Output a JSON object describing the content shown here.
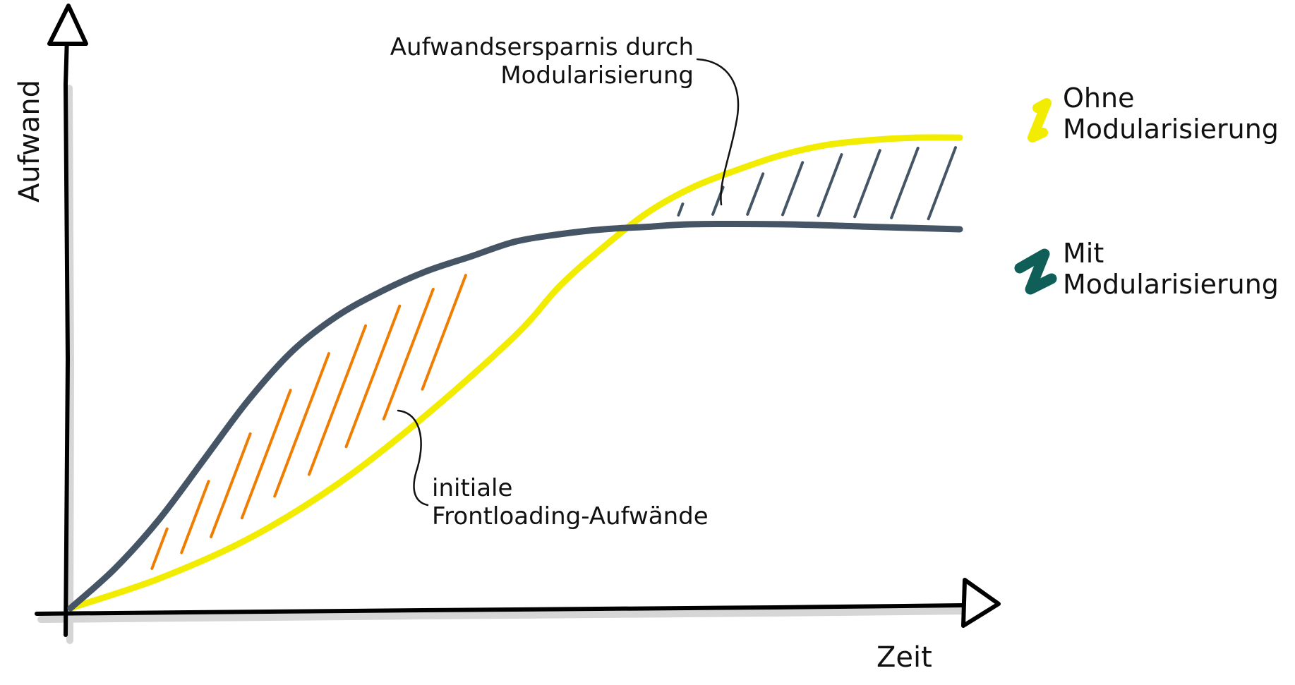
{
  "chart_data": {
    "type": "line",
    "title": "",
    "xlabel": "Zeit",
    "ylabel": "Aufwand",
    "grid": false,
    "legend_placement": "right",
    "xlim": [
      0,
      100
    ],
    "ylim": [
      0,
      100
    ],
    "series": [
      {
        "name": "Ohne Modularisierung",
        "color": "#f2ec00",
        "x": [
          0,
          10,
          20,
          30,
          40,
          50,
          55,
          60,
          65,
          70,
          75,
          80,
          85,
          90,
          95,
          100
        ],
        "y": [
          0,
          6,
          14,
          25,
          39,
          55,
          65,
          73,
          80,
          85,
          88.5,
          91.5,
          93.5,
          94.5,
          95,
          95
        ]
      },
      {
        "name": "Mit Modularisierung",
        "color": "#455566",
        "x": [
          0,
          5,
          10,
          15,
          20,
          25,
          30,
          35,
          40,
          45,
          50,
          55,
          60,
          65,
          70,
          80,
          90,
          100
        ],
        "y": [
          0,
          8,
          18,
          30,
          42,
          52,
          59,
          64,
          68,
          71,
          74,
          75.5,
          76.5,
          77,
          77.5,
          77.5,
          77,
          76.5
        ]
      }
    ],
    "annotations": [
      "Aufwandsersparnis durch Modularisierung",
      "initiale Frontloading-Aufwände"
    ],
    "hatch_colors": {
      "savings": "#455566",
      "frontloading": "#f07d00"
    }
  },
  "text": {
    "ylabel": "Aufwand",
    "xlabel": "Zeit",
    "savings_line1": "Aufwandsersparnis durch",
    "savings_line2": "Modularisierung",
    "front_line1": "initiale",
    "front_line2": "Frontloading-Aufwände",
    "legend1_line1": "Ohne",
    "legend1_line2": "Modularisierung",
    "legend2_line1": "Mit",
    "legend2_line2": "Modularisierung"
  }
}
